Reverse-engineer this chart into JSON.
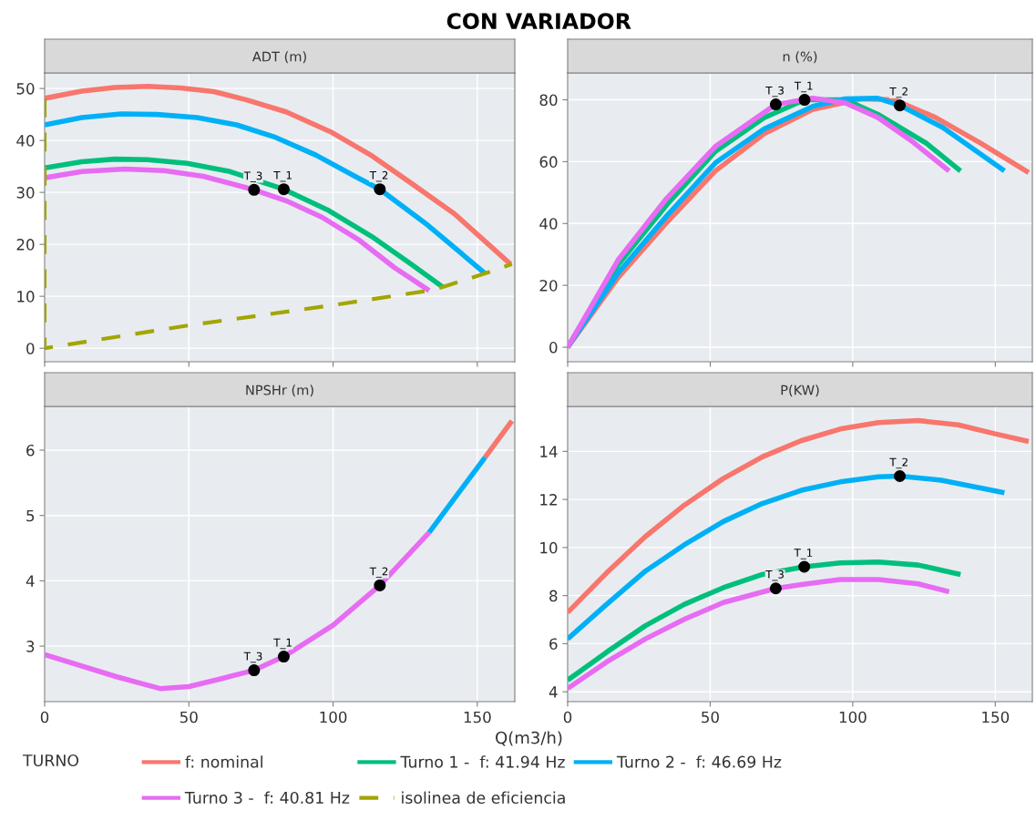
{
  "chart_data": [
    {
      "type": "line",
      "title": "ADT (m)",
      "annotations": [
        "CON VARIADOR",
        {
          "text": "T_3",
          "x": 72.6,
          "y": 30.5
        },
        {
          "text": "T_1",
          "x": 82.9,
          "y": 30.6
        },
        {
          "text": "T_2",
          "x": 116.2,
          "y": 30.6
        }
      ],
      "legend_title": "TURNO",
      "legend": "bottom",
      "grid": true,
      "tick_labels": "y",
      "xlim": [
        0,
        163
      ],
      "xticks": [
        0,
        50,
        100,
        150
      ],
      "ylim": [
        -2.6,
        53
      ],
      "yticks": [
        0,
        10,
        20,
        30,
        40,
        50
      ],
      "series": [
        {
          "name": "f: nominal",
          "color": "#f8766d",
          "x": [
            0,
            12.9,
            24.3,
            35.7,
            47,
            58.6,
            70,
            83.7,
            99.7,
            113,
            127,
            142,
            161.5
          ],
          "values": [
            48.1,
            49.5,
            50.2,
            50.4,
            50.1,
            49.4,
            47.8,
            45.5,
            41.5,
            37.2,
            31.8,
            25.9,
            16.2
          ]
        },
        {
          "name": "Turno 1 -  f: 41.94 Hz",
          "color": "#00bf7d",
          "x": [
            0,
            12.9,
            24.3,
            35.7,
            49.4,
            64.3,
            82.9,
            98.5,
            113.4,
            127,
            138
          ],
          "values": [
            34.7,
            35.9,
            36.4,
            36.3,
            35.6,
            34,
            30.6,
            26.5,
            21.5,
            16.2,
            11.8
          ]
        },
        {
          "name": "Turno 2 -  f: 46.69 Hz",
          "color": "#00b0f6",
          "x": [
            0,
            12.9,
            26.6,
            39,
            52.8,
            66.5,
            80,
            94,
            107.6,
            116.2,
            132.8,
            152.7
          ],
          "values": [
            43,
            44.4,
            45.1,
            45,
            44.4,
            43,
            40.6,
            37.2,
            33.1,
            30.6,
            23.7,
            14.4
          ]
        },
        {
          "name": "Turno 3 -  f: 40.81 Hz",
          "color": "#e76bf3",
          "x": [
            0,
            12.9,
            27.7,
            41.4,
            55,
            72.6,
            83.7,
            96.2,
            108.8,
            121.3,
            133.3
          ],
          "values": [
            32.8,
            34,
            34.5,
            34.2,
            33.1,
            30.5,
            28.4,
            25.2,
            20.9,
            15.5,
            11.1
          ]
        },
        {
          "name": "isolinea de eficiencia",
          "color": "#a3a500",
          "line_style": "dashed",
          "x": [
            0,
            0,
            50,
            100,
            133.3,
            138,
            152.7,
            162
          ],
          "values": [
            48.1,
            0,
            4.4,
            8.3,
            11.1,
            11.8,
            14.4,
            16.2
          ]
        },
        {
          "type": "scatter",
          "color": "#000000",
          "x": [
            72.6,
            82.9,
            116.2
          ],
          "values": [
            30.5,
            30.6,
            30.6
          ]
        }
      ]
    },
    {
      "type": "line",
      "title": "n (%)",
      "annotations": [
        {
          "text": "T_3",
          "x": 73,
          "y": 78.5
        },
        {
          "text": "T_1",
          "x": 83.1,
          "y": 80
        },
        {
          "text": "T_2",
          "x": 116.5,
          "y": 78.2
        }
      ],
      "grid": true,
      "tick_labels": "y",
      "xlim": [
        0,
        163
      ],
      "xticks": [
        0,
        50,
        100,
        150
      ],
      "ylim": [
        -4.7,
        88.7
      ],
      "yticks": [
        0,
        20,
        40,
        60,
        80
      ],
      "series": [
        {
          "name": "f: nominal",
          "color": "#f8766d",
          "x": [
            0,
            17.7,
            34.7,
            51.8,
            68.9,
            86,
            103,
            114.5,
            129,
            145,
            161.7
          ],
          "values": [
            0,
            22.5,
            40.3,
            57,
            69,
            76.9,
            80.3,
            80,
            74.3,
            65.9,
            56.5
          ]
        },
        {
          "name": "Turno 1 -  f: 41.94 Hz",
          "color": "#00bf7d",
          "x": [
            0,
            17.7,
            34.7,
            51.8,
            68.9,
            83.1,
            97.4,
            108.8,
            125.9,
            137.8
          ],
          "values": [
            0,
            26.7,
            46,
            63.3,
            74.2,
            80,
            80,
            75.3,
            65.9,
            57
          ]
        },
        {
          "name": "Turno 2 -  f: 46.69 Hz",
          "color": "#00b0f6",
          "x": [
            0,
            17.7,
            34.7,
            51.8,
            68.9,
            86,
            97.4,
            108.8,
            116.5,
            131.5,
            153.2
          ],
          "values": [
            0,
            24,
            42.4,
            59.6,
            70.6,
            77.9,
            80.3,
            80.5,
            78.2,
            71.1,
            57
          ]
        },
        {
          "name": "Turno 3 -  f: 40.81 Hz",
          "color": "#e76bf3",
          "x": [
            0,
            17.7,
            34.7,
            51.8,
            73,
            86,
            97.4,
            108.8,
            120.2,
            133.8
          ],
          "values": [
            0,
            28.2,
            48.1,
            64.9,
            78.5,
            80.5,
            79,
            74.3,
            67,
            57
          ]
        },
        {
          "type": "scatter",
          "color": "#000000",
          "x": [
            73,
            83.1,
            116.5
          ],
          "values": [
            78.5,
            80,
            78.2
          ]
        }
      ]
    },
    {
      "type": "line",
      "title": "NPSHr (m)",
      "xlabel": "Q(m3/h)",
      "annotations": [
        {
          "text": "T_3",
          "x": 72.6,
          "y": 2.63
        },
        {
          "text": "T_1",
          "x": 82.9,
          "y": 2.84
        },
        {
          "text": "T_2",
          "x": 116.2,
          "y": 3.93
        }
      ],
      "grid": true,
      "xlim": [
        0,
        163
      ],
      "xticks": [
        0,
        50,
        100,
        150
      ],
      "ylim": [
        2.15,
        6.67
      ],
      "yticks": [
        3,
        4,
        5,
        6
      ],
      "series": [
        {
          "name": "f: nominal",
          "color": "#f8766d",
          "x": [
            152.7,
            162
          ],
          "values": [
            5.89,
            6.45
          ]
        },
        {
          "name": "Turno 2 -  f: 46.69 Hz",
          "color": "#00b0f6",
          "x": [
            133.3,
            152.7
          ],
          "values": [
            4.74,
            5.89
          ]
        },
        {
          "name": "Turno 3 -  f: 40.81 Hz",
          "color": "#e76bf3",
          "x": [
            0,
            25,
            40,
            50,
            62,
            72.6,
            82.9,
            100,
            116.2,
            133.3
          ],
          "values": [
            2.87,
            2.53,
            2.35,
            2.38,
            2.51,
            2.63,
            2.84,
            3.32,
            3.93,
            4.74
          ]
        },
        {
          "type": "scatter",
          "color": "#000000",
          "x": [
            72.6,
            82.9,
            116.2
          ],
          "values": [
            2.63,
            2.84,
            3.93
          ]
        }
      ]
    },
    {
      "type": "line",
      "title": "P(KW)",
      "annotations": [
        {
          "text": "T_3",
          "x": 73,
          "y": 8.3
        },
        {
          "text": "T_1",
          "x": 83,
          "y": 9.2
        },
        {
          "text": "T_2",
          "x": 116.5,
          "y": 12.97
        }
      ],
      "grid": true,
      "xlim": [
        0,
        163
      ],
      "xticks": [
        0,
        50,
        100,
        150
      ],
      "ylim": [
        3.59,
        15.87
      ],
      "yticks": [
        4,
        6,
        8,
        10,
        12,
        14
      ],
      "series": [
        {
          "name": "f: nominal",
          "color": "#f8766d",
          "x": [
            0,
            13.7,
            27.3,
            41,
            54.6,
            68.3,
            82,
            95.6,
            109,
            123,
            137,
            150,
            161.7
          ],
          "values": [
            7.3,
            8.95,
            10.46,
            11.77,
            12.87,
            13.77,
            14.45,
            14.93,
            15.2,
            15.28,
            15.1,
            14.73,
            14.41
          ]
        },
        {
          "name": "Turno 1 -  f: 41.94 Hz",
          "color": "#00bf7d",
          "x": [
            0,
            13.7,
            27.3,
            41,
            54.6,
            68.3,
            83,
            95.6,
            109,
            123,
            137.8
          ],
          "values": [
            4.48,
            5.65,
            6.75,
            7.64,
            8.33,
            8.88,
            9.2,
            9.36,
            9.4,
            9.27,
            8.88
          ]
        },
        {
          "name": "Turno 2 -  f: 46.69 Hz",
          "color": "#00b0f6",
          "x": [
            0,
            13.7,
            27.3,
            41,
            54.6,
            68.3,
            82,
            95.6,
            109,
            116.5,
            131,
            153.2
          ],
          "values": [
            6.2,
            7.64,
            9.02,
            10.12,
            11.08,
            11.83,
            12.38,
            12.73,
            12.94,
            12.97,
            12.8,
            12.28
          ]
        },
        {
          "name": "Turno 3 -  f: 40.81 Hz",
          "color": "#e76bf3",
          "x": [
            0,
            13.7,
            27.3,
            41,
            54.6,
            73,
            82,
            95.6,
            109,
            123,
            133.8
          ],
          "values": [
            4.14,
            5.24,
            6.2,
            7.02,
            7.71,
            8.3,
            8.46,
            8.67,
            8.67,
            8.49,
            8.16
          ]
        },
        {
          "type": "scatter",
          "color": "#000000",
          "x": [
            73,
            83,
            116.5
          ],
          "values": [
            8.3,
            9.2,
            12.97
          ]
        }
      ]
    }
  ]
}
